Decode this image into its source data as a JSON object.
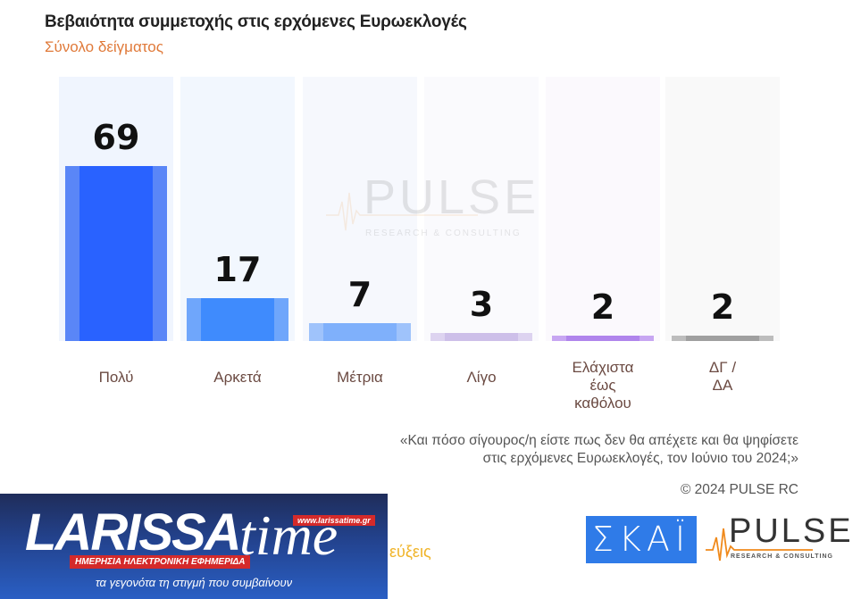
{
  "header": {
    "title": "Βεβαιότητα συμμετοχής στις ερχόμενες Ευρωεκλογές",
    "subtitle": "Σύνολο δείγματος"
  },
  "chart_data": {
    "type": "bar",
    "title": "Βεβαιότητα συμμετοχής στις ερχόμενες Ευρωεκλογές",
    "subtitle": "Σύνολο δείγματος",
    "categories": [
      "Πολύ",
      "Αρκετά",
      "Μέτρια",
      "Λίγο",
      "Ελάχιστα έως καθόλου",
      "ΔΓ / ΔΑ"
    ],
    "values": [
      69,
      17,
      7,
      3,
      2,
      2
    ],
    "colors": [
      "#2962ff",
      "#3f8bfd",
      "#7fb0fb",
      "#cdbfe9",
      "#b085ec",
      "#a0a0a0"
    ],
    "xlabel": "",
    "ylabel": "",
    "ylim": [
      0,
      100
    ],
    "grid": false,
    "legend": "none",
    "unit": "%"
  },
  "bars": [
    {
      "label_lines": [
        "Πολύ"
      ],
      "value": "69",
      "color": "#2962ff",
      "edge": "#5a86f7",
      "bg": "#f0f5fe"
    },
    {
      "label_lines": [
        "Αρκετά"
      ],
      "value": "17",
      "color": "#3f8bfd",
      "edge": "#6fa6fb",
      "bg": "#f2f7fe"
    },
    {
      "label_lines": [
        "Μέτρια"
      ],
      "value": "7",
      "color": "#7fb0fb",
      "edge": "#9fc3fb",
      "bg": "#f6f8fd"
    },
    {
      "label_lines": [
        "Λίγο"
      ],
      "value": "3",
      "color": "#cdbfe9",
      "edge": "#ddd3f0",
      "bg": "#fafafd"
    },
    {
      "label_lines": [
        "Ελάχιστα",
        "έως",
        "καθόλου"
      ],
      "value": "2",
      "color": "#b085ec",
      "edge": "#c7a6f2",
      "bg": "#fbf9fd"
    },
    {
      "label_lines": [
        "ΔΓ /",
        "ΔΑ"
      ],
      "value": "2",
      "color": "#a0a0a0",
      "edge": "#bdbdbd",
      "bg": "#f9f9f9"
    }
  ],
  "watermark": {
    "brand": "PULSE",
    "tagline": "RESEARCH & CONSULTING"
  },
  "question": {
    "line1": "«Και πόσο σίγουρος/η είστε πως δεν θα απέχετε και θα ψηφίσετε",
    "line2": "στις ερχόμενες Ευρωεκλογές, τον Ιούνιο του 2024;»"
  },
  "copyright": "© 2024 PULSE RC",
  "banner": {
    "brand": "LARISSA",
    "brand_suffix": "time",
    "url": "www.larissatime.gr",
    "tagline": "ΗΜΕΡΗΣΙΑ ΗΛΕΚΤΡΟΝΙΚΗ ΕΦΗΜΕΡΙΔΑ",
    "slogan": "τα γεγονότα τη στιγμή που συμβαίνουν"
  },
  "partial_text": "εύξεις",
  "logos": {
    "skai": "ΣΚΑΪ",
    "pulse": "PULSE",
    "pulse_sub": "RESEARCH & CONSULTING"
  }
}
